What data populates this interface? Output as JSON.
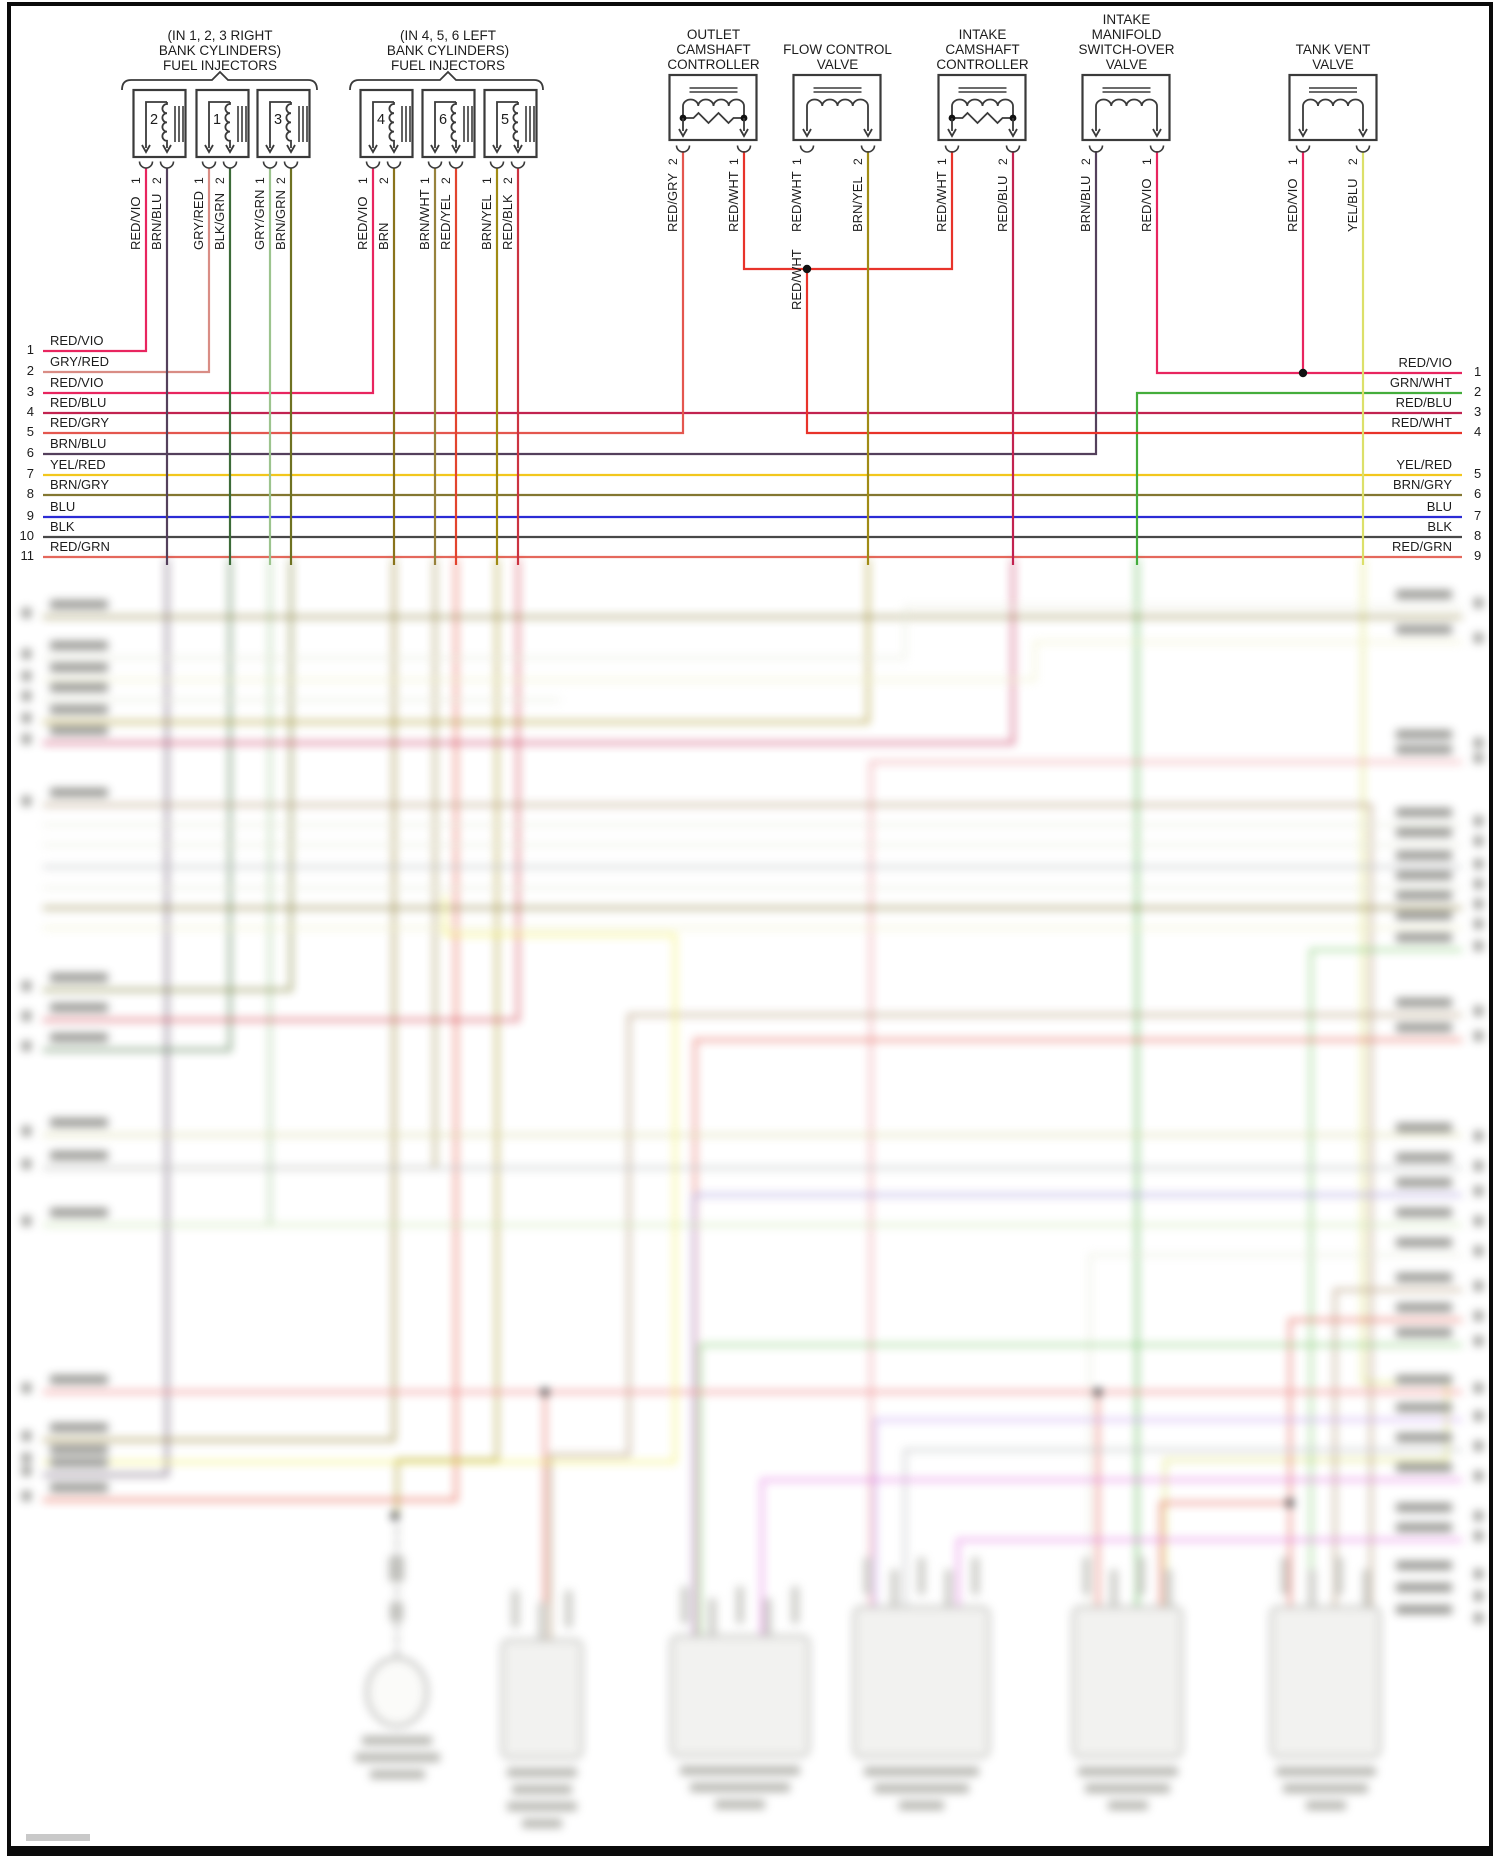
{
  "diagram": {
    "groups": [
      {
        "title_lines": [
          "(IN 1, 2, 3 RIGHT",
          "BANK CYLINDERS)",
          "FUEL INJECTORS"
        ],
        "injectors": [
          {
            "number": "2",
            "pin1": "1",
            "wire1": "RED/VIO",
            "pin2": "2",
            "wire2": "BRN/BLU"
          },
          {
            "number": "1",
            "pin1": "1",
            "wire1": "GRY/RED",
            "pin2": "2",
            "wire2": "BLK/GRN"
          },
          {
            "number": "3",
            "pin1": "1",
            "wire1": "GRY/GRN",
            "pin2": "2",
            "wire2": "BRN/GRN"
          }
        ]
      },
      {
        "title_lines": [
          "(IN 4, 5, 6 LEFT",
          "BANK CYLINDERS)",
          "FUEL INJECTORS"
        ],
        "injectors": [
          {
            "number": "4",
            "pin1": "1",
            "wire1": "RED/VIO",
            "pin2": "2",
            "wire2": "BRN"
          },
          {
            "number": "6",
            "pin1": "1",
            "wire1": "BRN/WHT",
            "pin2": "2",
            "wire2": "RED/YEL"
          },
          {
            "number": "5",
            "pin1": "1",
            "wire1": "BRN/YEL",
            "pin2": "2",
            "wire2": "RED/BLK"
          }
        ]
      }
    ],
    "devices": [
      {
        "title_lines": [
          "OUTLET",
          "CAMSHAFT",
          "CONTROLLER"
        ],
        "pinL": "2",
        "wireL": "RED/GRY",
        "pinR": "1",
        "wireR": "RED/WHT",
        "resistor": true
      },
      {
        "title_lines": [
          "FLOW CONTROL",
          "VALVE"
        ],
        "pinL": "1",
        "wireL": "RED/WHT",
        "pinR": "2",
        "wireR": "BRN/YEL",
        "resistor": false
      },
      {
        "title_lines": [
          "INTAKE",
          "CAMSHAFT",
          "CONTROLLER"
        ],
        "pinL": "1",
        "wireL": "RED/WHT",
        "pinR": "2",
        "wireR": "RED/BLU",
        "resistor": true
      },
      {
        "title_lines": [
          "INTAKE",
          "MANIFOLD",
          "SWITCH-OVER",
          "VALVE"
        ],
        "pinL": "2",
        "wireL": "BRN/BLU",
        "pinR": "1",
        "wireR": "RED/VIO",
        "resistor": false
      },
      {
        "title_lines": [
          "TANK VENT",
          "VALVE"
        ],
        "pinL": "1",
        "wireL": "RED/VIO",
        "pinR": "2",
        "wireR": "YEL/BLU",
        "resistor": false
      }
    ],
    "junction_wire_label": "RED/WHT",
    "left_rows": [
      {
        "num": "1",
        "label": "RED/VIO"
      },
      {
        "num": "2",
        "label": "GRY/RED"
      },
      {
        "num": "3",
        "label": "RED/VIO"
      },
      {
        "num": "4",
        "label": "RED/BLU"
      },
      {
        "num": "5",
        "label": "RED/GRY"
      },
      {
        "num": "6",
        "label": "BRN/BLU"
      },
      {
        "num": "7",
        "label": "YEL/RED"
      },
      {
        "num": "8",
        "label": "BRN/GRY"
      },
      {
        "num": "9",
        "label": "BLU"
      },
      {
        "num": "10",
        "label": "BLK"
      },
      {
        "num": "11",
        "label": "RED/GRN"
      }
    ],
    "right_rows": [
      {
        "num": "1",
        "label": "RED/VIO"
      },
      {
        "num": "2",
        "label": "GRN/WHT"
      },
      {
        "num": "3",
        "label": "RED/BLU"
      },
      {
        "num": "4",
        "label": "RED/WHT"
      },
      {
        "num": "5",
        "label": "YEL/RED"
      },
      {
        "num": "6",
        "label": "BRN/GRY"
      },
      {
        "num": "7",
        "label": "BLU"
      },
      {
        "num": "8",
        "label": "BLK"
      },
      {
        "num": "9",
        "label": "RED/GRN"
      }
    ]
  },
  "colors": {
    "wires": {
      "RED/VIO": "#e8255f",
      "BRN/BLU": "#54405c",
      "GRY/RED": "#d98d85",
      "BLK/GRN": "#3c6b38",
      "GRY/GRN": "#9cc48e",
      "BRN/GRN": "#6f7222",
      "BRN": "#8a741c",
      "BRN/WHT": "#97823d",
      "RED/YEL": "#e2442e",
      "BRN/YEL": "#a08b15",
      "RED/BLK": "#cc3340",
      "RED/GRY": "#e4574f",
      "RED/WHT": "#e8332a",
      "RED/BLU": "#c22350",
      "YEL/RED": "#f2c71d",
      "BRN/GRY": "#837731",
      "BLU": "#2b2bd5",
      "BLK": "#484848",
      "RED/GRN": "#e4685c",
      "GRN/WHT": "#44ad3c",
      "YEL/BLU": "#dce06a"
    },
    "blur_palette": {
      "pale": "#e7e9da",
      "paleyellow": "#eeeec6",
      "paleolive": "#d6d6a0",
      "gray": "#b9bcbe",
      "green": "#7cc86c",
      "ltgreen": "#c8e4ae",
      "brown2": "#a98c67",
      "red2": "#e2574a",
      "pink2": "#ec8f96",
      "pink3": "#f08f8f",
      "violet": "#c39bf0",
      "violet2": "#9f8fd8",
      "magenta": "#e070e0",
      "yellow": "#f2ee55"
    },
    "line_ink": "#2f2f2f",
    "box_ink": "#3a3a3a"
  }
}
